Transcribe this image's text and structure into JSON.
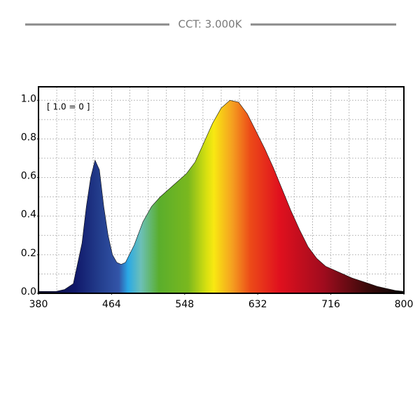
{
  "chart_data": {
    "type": "area",
    "title": "CCT: 3.000K",
    "annotation": "[ 1.0 = 0 ]",
    "x": [
      380,
      390,
      400,
      410,
      420,
      430,
      435,
      440,
      445,
      450,
      455,
      460,
      465,
      470,
      475,
      480,
      490,
      500,
      510,
      520,
      530,
      540,
      550,
      560,
      570,
      580,
      590,
      600,
      610,
      620,
      630,
      640,
      650,
      660,
      670,
      680,
      690,
      700,
      710,
      720,
      730,
      740,
      750,
      760,
      770,
      780,
      790,
      800
    ],
    "values": [
      0.01,
      0.01,
      0.01,
      0.02,
      0.05,
      0.26,
      0.45,
      0.6,
      0.69,
      0.64,
      0.45,
      0.3,
      0.2,
      0.16,
      0.15,
      0.16,
      0.25,
      0.37,
      0.45,
      0.5,
      0.54,
      0.58,
      0.62,
      0.68,
      0.78,
      0.88,
      0.96,
      1.0,
      0.99,
      0.93,
      0.84,
      0.75,
      0.65,
      0.54,
      0.43,
      0.33,
      0.24,
      0.18,
      0.14,
      0.12,
      0.1,
      0.08,
      0.065,
      0.05,
      0.035,
      0.025,
      0.015,
      0.01
    ],
    "xlim": [
      380,
      800
    ],
    "ylim": [
      0,
      1.07
    ],
    "xticks": [
      380,
      464,
      548,
      632,
      716,
      800
    ],
    "yticks": [
      {
        "value": 0,
        "label": "0.0"
      },
      0.2,
      0.4,
      0.6,
      0.8,
      {
        "value": 1,
        "label": "1.0"
      }
    ],
    "xgrid": [
      401,
      422,
      443,
      464,
      485,
      506,
      527,
      548,
      569,
      590,
      611,
      632,
      653,
      674,
      695,
      716,
      737,
      758,
      779
    ],
    "ygrid": [
      0.1,
      0.2,
      0.3,
      0.4,
      0.5,
      0.6,
      0.7,
      0.8,
      0.9,
      1.0
    ],
    "grid": true
  }
}
